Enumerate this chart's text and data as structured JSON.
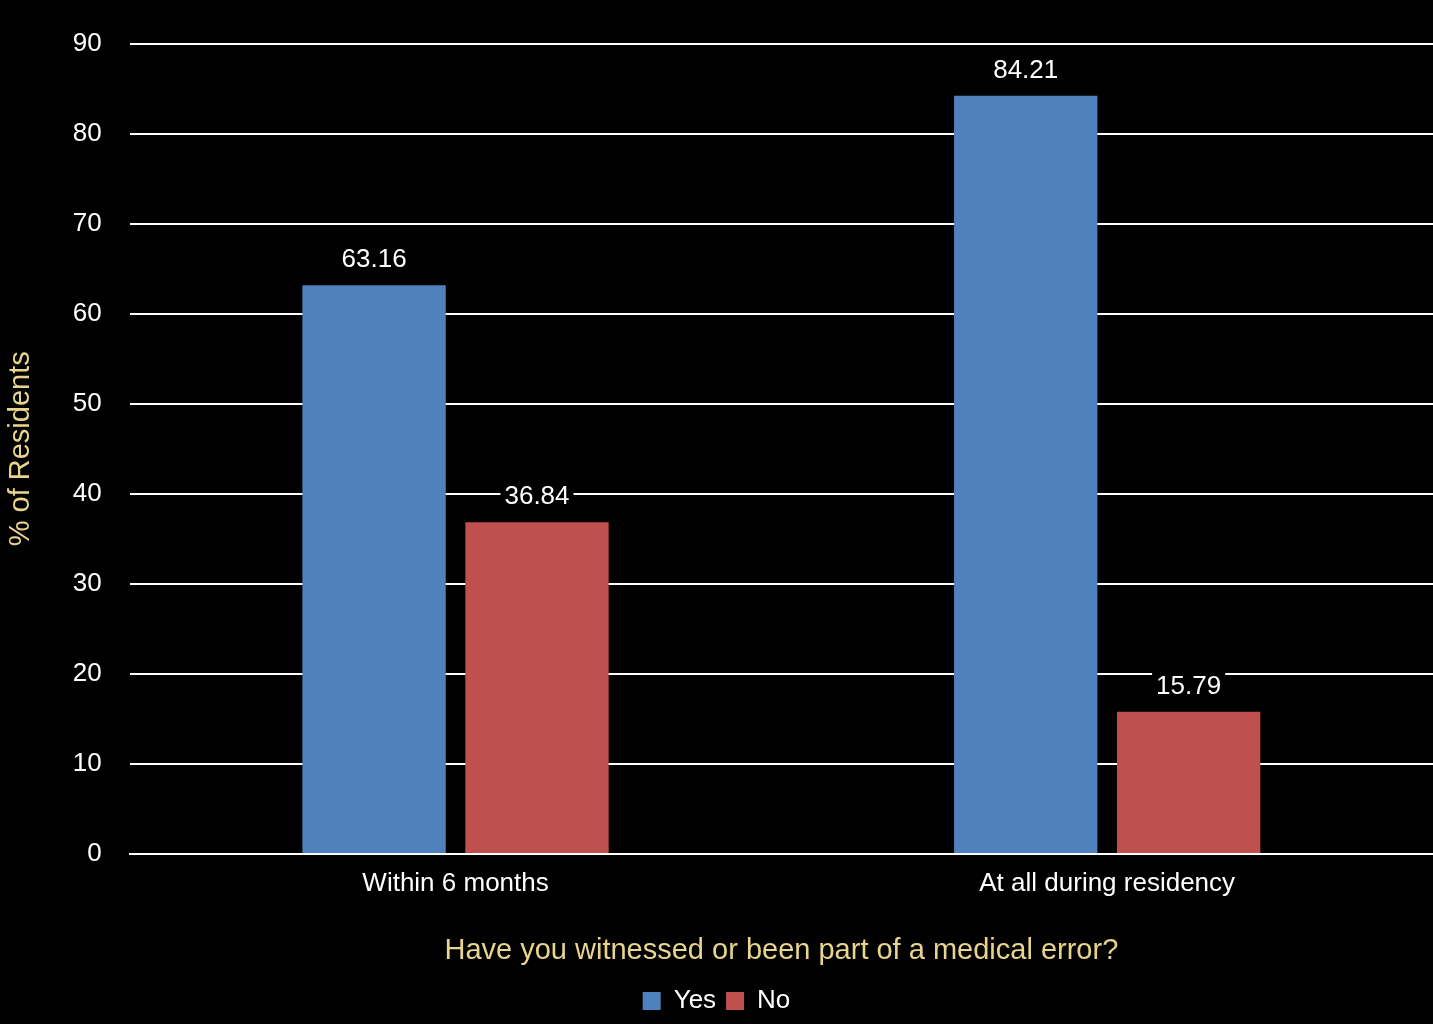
{
  "chart_data": {
    "type": "bar",
    "xlabel": "Have you witnessed or been part of a medical error?",
    "ylabel": "% of Residents",
    "categories": [
      "Within 6 months",
      "At all during residency"
    ],
    "series": [
      {
        "name": "Yes",
        "color": "#4f81bd",
        "values": [
          63.16,
          84.21
        ]
      },
      {
        "name": "No",
        "color": "#c0504d",
        "values": [
          36.84,
          15.79
        ]
      }
    ],
    "ylim": [
      0,
      90
    ],
    "yticks": [
      0,
      10,
      20,
      30,
      40,
      50,
      60,
      70,
      80,
      90
    ],
    "grid": "y",
    "legend": "bottom",
    "data_labels": true
  }
}
